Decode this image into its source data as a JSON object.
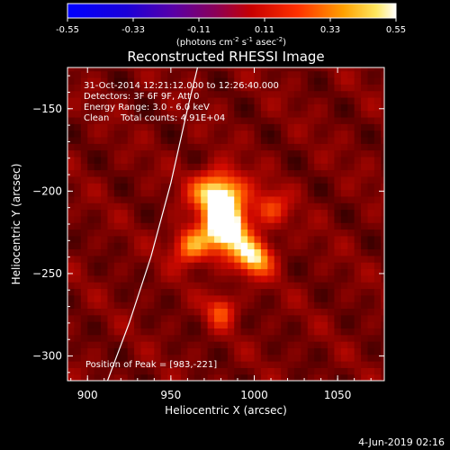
{
  "colorbar": {
    "ticks": [
      "-0.55",
      "-0.33",
      "-0.11",
      "0.11",
      "0.33",
      "0.55"
    ],
    "tick_values": [
      -0.55,
      -0.33,
      -0.11,
      0.11,
      0.33,
      0.55
    ],
    "unit_prefix": "(photons cm",
    "unit_exp1": "-2",
    "unit_mid": " s",
    "unit_exp2": "-1",
    "unit_mid2": " asec",
    "unit_exp3": "-2",
    "unit_suffix": ")",
    "range": [
      -0.55,
      0.55
    ]
  },
  "chart_data": {
    "type": "heatmap",
    "title": "Reconstructed RHESSI Image",
    "xlabel": "Heliocentric X (arcsec)",
    "ylabel": "Heliocentric Y (arcsec)",
    "xlim": [
      888,
      1078
    ],
    "ylim": [
      -315,
      -125
    ],
    "x_ticks": [
      900,
      950,
      1000,
      1050
    ],
    "y_ticks": [
      -150,
      -200,
      -250,
      -300
    ],
    "info_lines": [
      "31-Oct-2014 12:21:12.000 to 12:26:40.000",
      "Detectors: 3F 6F 9F, Att 0",
      "Energy Range: 3.0 - 6.0 keV",
      "Clean    Total counts: 4.91E+04"
    ],
    "peak_label": "Position of Peak = [983,-221]",
    "peak": [
      983,
      -221
    ],
    "sources": [
      {
        "x": 983,
        "y": -221,
        "amp": 0.55,
        "sx": 9,
        "sy": 11
      },
      {
        "x": 978,
        "y": -200,
        "amp": 0.4,
        "sx": 11,
        "sy": 9
      },
      {
        "x": 1000,
        "y": -240,
        "amp": 0.36,
        "sx": 8,
        "sy": 8
      },
      {
        "x": 962,
        "y": -233,
        "amp": 0.3,
        "sx": 8,
        "sy": 8
      },
      {
        "x": 980,
        "y": -272,
        "amp": 0.22,
        "sx": 6,
        "sy": 7
      },
      {
        "x": 1010,
        "y": -210,
        "amp": 0.18,
        "sx": 8,
        "sy": 8
      }
    ],
    "background": 0.15,
    "limb_curve": [
      [
        912,
        -315
      ],
      [
        925,
        -280
      ],
      [
        938,
        -240
      ],
      [
        950,
        -195
      ],
      [
        960,
        -150
      ],
      [
        966,
        -125
      ]
    ]
  },
  "footer": {
    "date": "4-Jun-2019 02:16"
  }
}
